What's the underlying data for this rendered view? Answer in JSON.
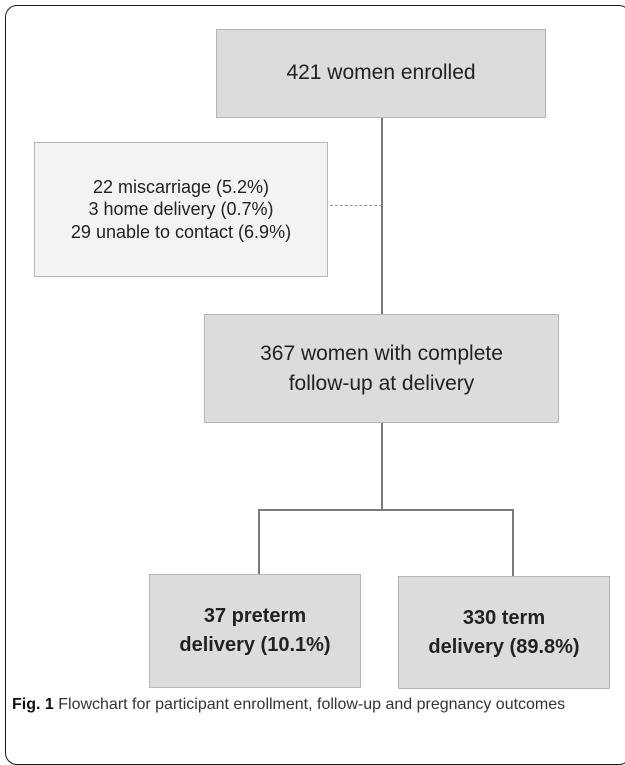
{
  "boxes": {
    "enrolled": "421 women enrolled",
    "excluded": [
      "22 miscarriage (5.2%)",
      "3 home delivery (0.7%)",
      "29 unable to contact (6.9%)"
    ],
    "complete": [
      "367 women with complete",
      "follow-up at delivery"
    ],
    "preterm": [
      "37 preterm",
      "delivery (10.1%)"
    ],
    "term": [
      "330 term",
      "delivery (89.8%)"
    ]
  },
  "caption": {
    "label": "Fig. 1",
    "text": "Flowchart for participant enrollment, follow-up and pregnancy outcomes"
  }
}
